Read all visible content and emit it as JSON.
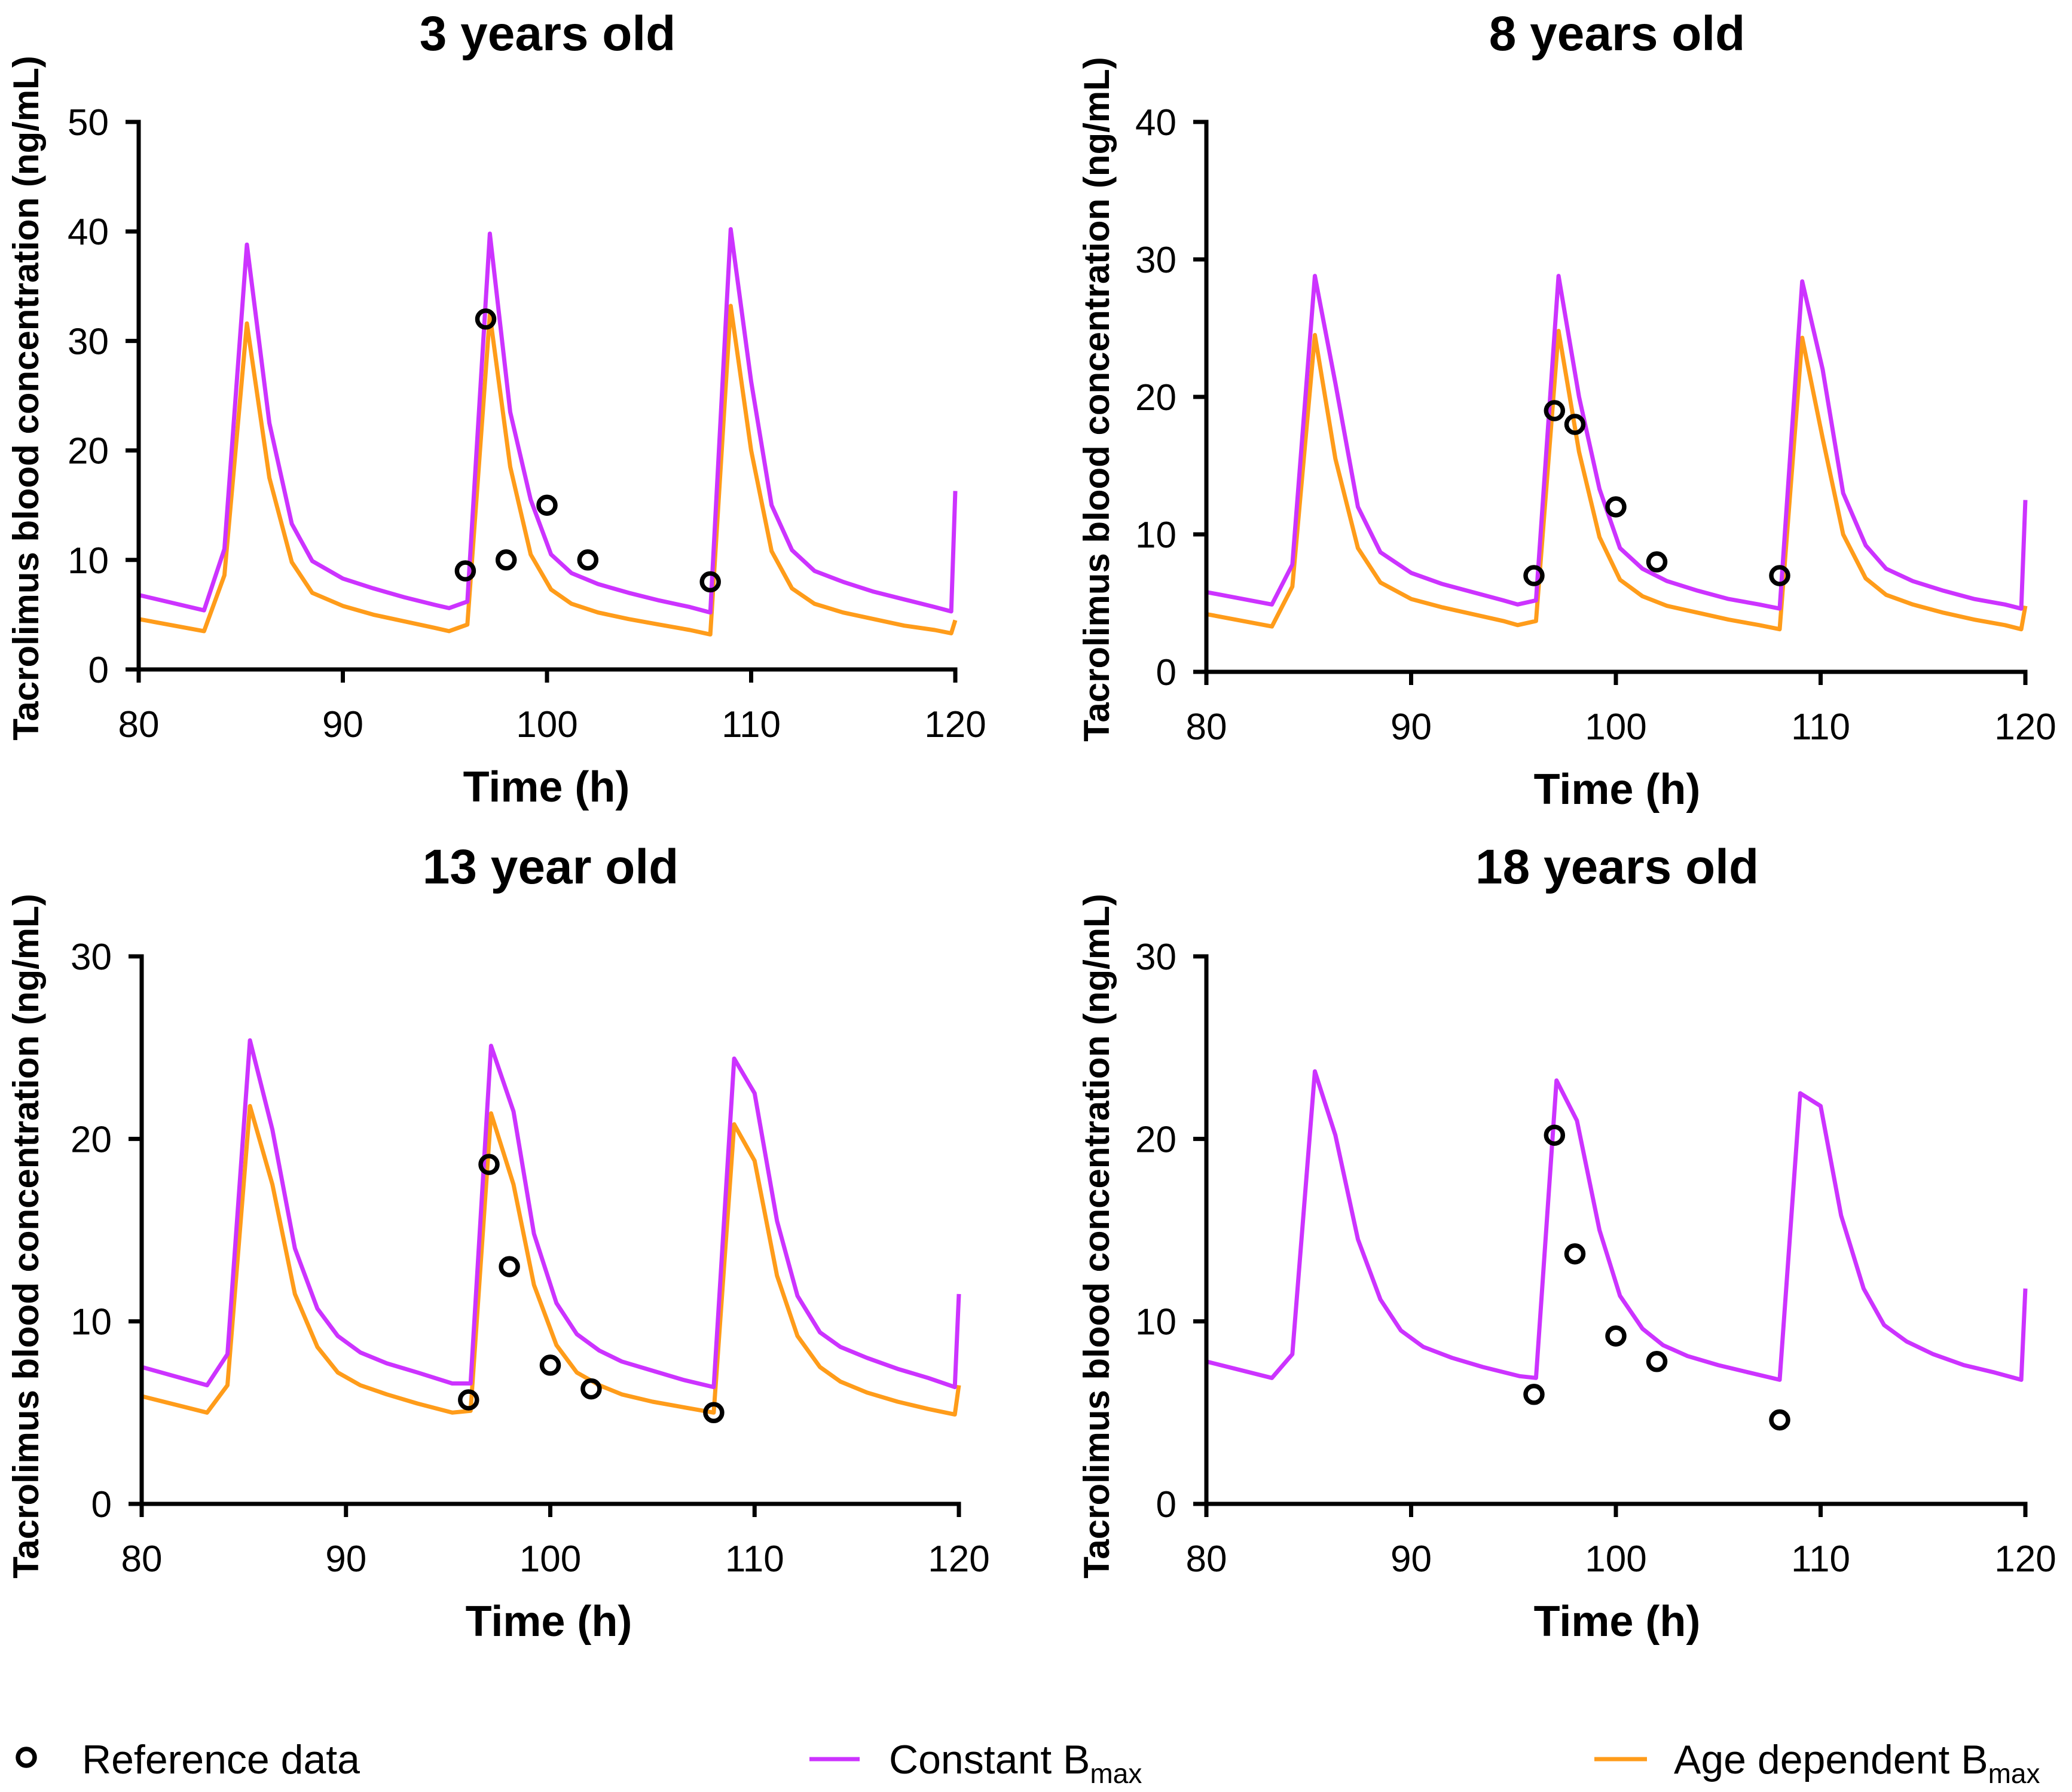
{
  "legend": {
    "items": [
      {
        "label": "Reference data",
        "color": "#000000"
      },
      {
        "label": "Constant B",
        "sub": "max",
        "color": "#cc33ff"
      },
      {
        "label": "Age dependent B",
        "sub": "max",
        "color": "#ff9c1a"
      }
    ]
  },
  "chart_data": [
    {
      "type": "line",
      "title": "3 years old",
      "xlabel": "Time (h)",
      "ylabel": "Tacrolimus blood concentration (ng/mL)",
      "xlim": [
        80,
        120
      ],
      "ylim": [
        0,
        50
      ],
      "xticks": [
        80,
        90,
        100,
        110,
        120
      ],
      "yticks": [
        0,
        10,
        20,
        30,
        40,
        50
      ],
      "x": [
        80,
        83.2,
        84.2,
        85.3,
        86.4,
        87.5,
        88.5,
        90,
        91.5,
        93,
        94.5,
        95.2,
        96.1,
        97.2,
        98.2,
        99.2,
        100.2,
        101.2,
        102.5,
        104,
        105.5,
        107,
        108,
        109,
        110,
        111,
        112,
        113.1,
        114.5,
        116,
        117.5,
        119,
        119.8,
        120
      ],
      "series": [
        {
          "legend_index": 1,
          "y": [
            6.8,
            5.4,
            11.0,
            38.8,
            22.5,
            13.3,
            9.9,
            8.3,
            7.4,
            6.6,
            5.9,
            5.6,
            6.2,
            39.8,
            23.5,
            15.5,
            10.5,
            8.8,
            7.8,
            7.0,
            6.3,
            5.7,
            5.2,
            40.2,
            26.3,
            15.0,
            10.9,
            9.0,
            8.0,
            7.1,
            6.4,
            5.7,
            5.3,
            16.3
          ]
        },
        {
          "legend_index": 2,
          "y": [
            4.6,
            3.5,
            8.6,
            31.6,
            17.5,
            9.8,
            7.0,
            5.8,
            5.0,
            4.4,
            3.8,
            3.5,
            4.1,
            32.4,
            18.5,
            10.5,
            7.3,
            6.0,
            5.2,
            4.6,
            4.1,
            3.6,
            3.2,
            33.2,
            20.0,
            10.8,
            7.4,
            6.0,
            5.2,
            4.6,
            4.0,
            3.6,
            3.3,
            4.5
          ]
        }
      ],
      "reference": {
        "legend_index": 0,
        "x": [
          96,
          97,
          98,
          100,
          102,
          108
        ],
        "y": [
          9,
          32,
          10,
          15,
          10,
          8
        ]
      }
    },
    {
      "type": "line",
      "title": "8 years old",
      "xlabel": "Time (h)",
      "ylabel": "Tacrolimus blood concentration (ng/mL)",
      "xlim": [
        80,
        120
      ],
      "ylim": [
        0,
        40
      ],
      "xticks": [
        80,
        90,
        100,
        110,
        120
      ],
      "yticks": [
        0,
        10,
        20,
        30,
        40
      ],
      "x": [
        80,
        83.2,
        84.2,
        85.3,
        86.3,
        87.4,
        88.5,
        90,
        91.5,
        93,
        94.5,
        95.2,
        96.1,
        97.2,
        98.2,
        99.2,
        100.2,
        101.3,
        102.5,
        104,
        105.5,
        107,
        108,
        109.1,
        110.1,
        111.1,
        112.2,
        113.2,
        114.5,
        116,
        117.5,
        119,
        119.8,
        120
      ],
      "series": [
        {
          "legend_index": 1,
          "y": [
            5.8,
            4.9,
            7.8,
            28.8,
            21.0,
            12.0,
            8.7,
            7.2,
            6.4,
            5.8,
            5.2,
            4.9,
            5.2,
            28.8,
            20.0,
            13.3,
            9.0,
            7.5,
            6.6,
            5.9,
            5.3,
            4.9,
            4.6,
            28.4,
            22.0,
            13.0,
            9.2,
            7.5,
            6.6,
            5.9,
            5.3,
            4.9,
            4.6,
            12.5
          ]
        },
        {
          "legend_index": 2,
          "y": [
            4.2,
            3.3,
            6.2,
            24.5,
            15.5,
            9.0,
            6.5,
            5.3,
            4.7,
            4.2,
            3.7,
            3.4,
            3.7,
            24.8,
            16.0,
            9.8,
            6.7,
            5.5,
            4.8,
            4.3,
            3.8,
            3.4,
            3.1,
            24.3,
            17.0,
            10.0,
            6.8,
            5.6,
            4.9,
            4.3,
            3.8,
            3.4,
            3.1,
            4.8
          ]
        }
      ],
      "reference": {
        "legend_index": 0,
        "x": [
          96,
          97,
          98,
          100,
          102,
          108
        ],
        "y": [
          7,
          19,
          18,
          12,
          8,
          7
        ]
      }
    },
    {
      "type": "line",
      "title": "13 year old",
      "xlabel": "Time (h)",
      "ylabel": "Tacrolimus blood concentration (ng/mL)",
      "xlim": [
        80,
        120
      ],
      "ylim": [
        0,
        30
      ],
      "xticks": [
        80,
        90,
        100,
        110,
        120
      ],
      "yticks": [
        0,
        10,
        20,
        30
      ],
      "x": [
        80,
        83.2,
        84.2,
        85.3,
        86.4,
        87.5,
        88.6,
        89.6,
        90.7,
        92,
        93.5,
        95.2,
        96.1,
        97.1,
        98.2,
        99.2,
        100.3,
        101.3,
        102.4,
        103.5,
        105,
        106.5,
        108,
        109,
        110,
        111.1,
        112.1,
        113.2,
        114.2,
        115.5,
        117,
        118.5,
        119.8,
        120
      ],
      "series": [
        {
          "legend_index": 1,
          "y": [
            7.5,
            6.5,
            8.2,
            25.4,
            20.5,
            14.0,
            10.7,
            9.2,
            8.3,
            7.7,
            7.2,
            6.6,
            6.6,
            25.1,
            21.5,
            14.8,
            11.0,
            9.3,
            8.4,
            7.8,
            7.3,
            6.8,
            6.4,
            24.4,
            22.5,
            15.5,
            11.4,
            9.4,
            8.6,
            8.0,
            7.4,
            6.9,
            6.4,
            11.5
          ]
        },
        {
          "legend_index": 2,
          "y": [
            5.9,
            5.0,
            6.5,
            21.8,
            17.5,
            11.5,
            8.6,
            7.2,
            6.5,
            6.0,
            5.5,
            5.0,
            5.1,
            21.4,
            17.5,
            12.0,
            8.7,
            7.2,
            6.5,
            6.0,
            5.6,
            5.3,
            5.0,
            20.8,
            18.8,
            12.5,
            9.2,
            7.5,
            6.7,
            6.1,
            5.6,
            5.2,
            4.9,
            6.5
          ]
        }
      ],
      "reference": {
        "legend_index": 0,
        "x": [
          96,
          97,
          98,
          100,
          102,
          108
        ],
        "y": [
          5.7,
          18.6,
          13.0,
          7.6,
          6.3,
          5.0
        ]
      }
    },
    {
      "type": "line",
      "title": "18 years old",
      "xlabel": "Time (h)",
      "ylabel": "Tacrolimus blood concentration (ng/mL)",
      "xlim": [
        80,
        120
      ],
      "ylim": [
        0,
        30
      ],
      "xticks": [
        80,
        90,
        100,
        110,
        120
      ],
      "yticks": [
        0,
        10,
        20,
        30
      ],
      "x": [
        80,
        83.2,
        84.2,
        85.3,
        86.3,
        87.4,
        88.5,
        89.5,
        90.6,
        92,
        93.5,
        95.3,
        96.1,
        97.1,
        98.1,
        99.2,
        100.2,
        101.3,
        102.3,
        103.5,
        105,
        106.5,
        108,
        109,
        110,
        111,
        112.1,
        113.1,
        114.2,
        115.5,
        117,
        118.5,
        119.8,
        120
      ],
      "series": [
        {
          "legend_index": 1,
          "y": [
            7.8,
            6.9,
            8.2,
            23.7,
            20.2,
            14.5,
            11.2,
            9.5,
            8.6,
            8.0,
            7.5,
            7.0,
            6.9,
            23.2,
            21.0,
            15.0,
            11.4,
            9.6,
            8.7,
            8.1,
            7.6,
            7.2,
            6.8,
            22.5,
            21.8,
            15.8,
            11.8,
            9.8,
            8.9,
            8.2,
            7.6,
            7.2,
            6.8,
            11.8
          ]
        }
      ],
      "reference": {
        "legend_index": 0,
        "x": [
          96,
          97,
          98,
          100,
          102,
          108
        ],
        "y": [
          6.0,
          20.2,
          13.7,
          9.2,
          7.8,
          4.6
        ]
      }
    }
  ]
}
